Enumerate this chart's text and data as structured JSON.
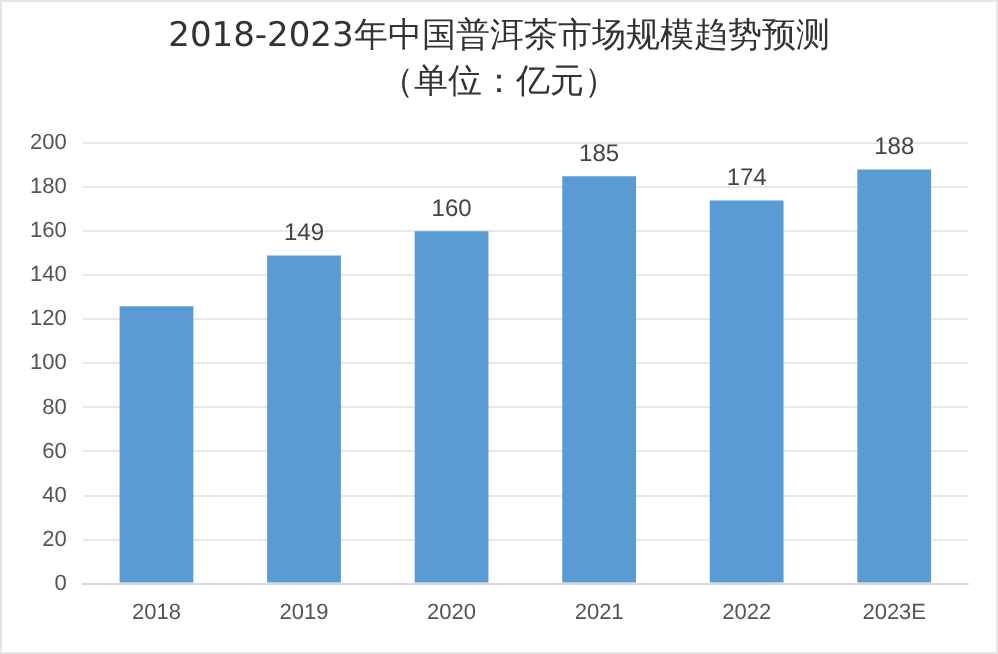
{
  "chart_data": {
    "type": "bar",
    "title": "2018-2023年中国普洱茶市场规模趋势预测",
    "subtitle": "（单位：亿元）",
    "categories": [
      "2018",
      "2019",
      "2020",
      "2021",
      "2022",
      "2023E"
    ],
    "values": [
      126,
      149,
      160,
      185,
      174,
      188
    ],
    "value_labels": [
      null,
      "149",
      "160",
      "185",
      "174",
      "188"
    ],
    "color": "#5b9bd5",
    "ylim": [
      0,
      200
    ],
    "yticks": [
      0,
      20,
      40,
      60,
      80,
      100,
      120,
      140,
      160,
      180,
      200
    ],
    "grid": "y"
  }
}
